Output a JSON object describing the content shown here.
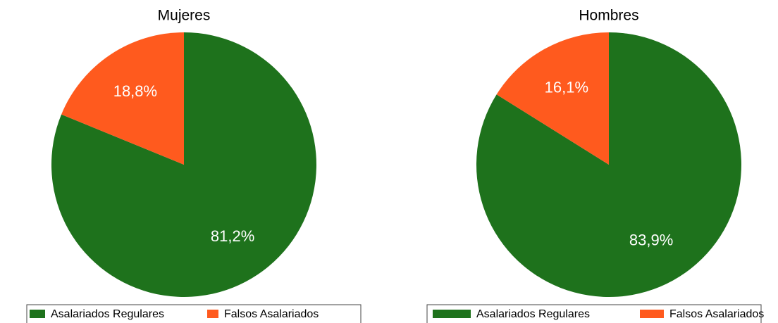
{
  "chart_data": [
    {
      "type": "pie",
      "title": "Mujeres",
      "categories": [
        "Asalariados Regulares",
        "Falsos Asalariados"
      ],
      "values": [
        81.2,
        18.8
      ],
      "value_labels": [
        "81,2%",
        "18,8%"
      ],
      "colors": [
        "#1e721c",
        "#ff5a1e"
      ]
    },
    {
      "type": "pie",
      "title": "Hombres",
      "categories": [
        "Asalariados Regulares",
        "Falsos Asalariados"
      ],
      "values": [
        83.9,
        16.1
      ],
      "value_labels": [
        "83,9%",
        "16,1%"
      ],
      "colors": [
        "#1e721c",
        "#ff5a1e"
      ]
    }
  ]
}
